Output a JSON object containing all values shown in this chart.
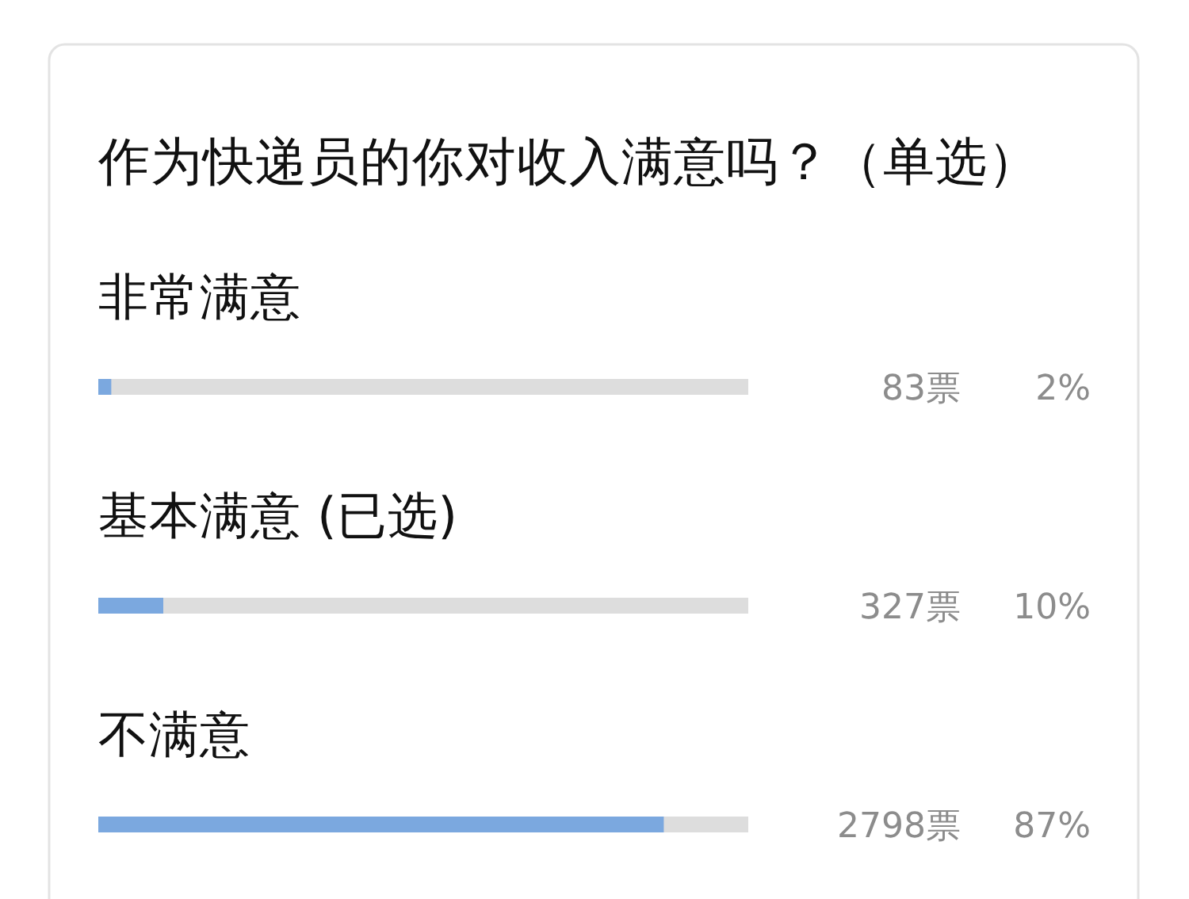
{
  "chart_data": {
    "type": "bar",
    "orientation": "horizontal",
    "title": "作为快递员的你对收入满意吗？（单选）",
    "categories": [
      "非常满意",
      "基本满意 (已选)",
      "不满意"
    ],
    "values": [
      2,
      10,
      87
    ],
    "color": "#7ba8df",
    "xlim": [
      0,
      100
    ],
    "tick_labels": "y",
    "value_labels": [
      "2%",
      "10%",
      "87%"
    ],
    "annotations": [
      "83票",
      "327票",
      "2798票"
    ]
  }
}
